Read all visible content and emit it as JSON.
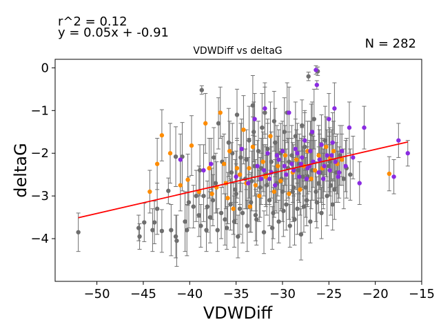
{
  "chart_data": {
    "type": "scatter",
    "title": "VDWDiff vs deltaG",
    "xlabel": "VDWDiff",
    "ylabel": "deltaG",
    "xlim": [
      -54.5,
      -15.0
    ],
    "ylim": [
      -5.0,
      0.2
    ],
    "xticks": [
      -50,
      -45,
      -40,
      -35,
      -30,
      -25,
      -20,
      -15
    ],
    "yticks": [
      0,
      -1,
      -2,
      -3,
      -4
    ],
    "xtick_labels": [
      "−50",
      "−45",
      "−40",
      "−35",
      "−30",
      "−25",
      "−20",
      "−15"
    ],
    "ytick_labels": [
      "0",
      "−1",
      "−2",
      "−3",
      "−4"
    ],
    "annotations": {
      "r2": "r^2 = 0.12",
      "equation": "y = 0.05x + -0.91",
      "n": "N = 282"
    },
    "fit": {
      "slope": 0.05,
      "intercept": -0.91,
      "x_range": [
        -52.0,
        -16.5
      ],
      "color": "#ff0000"
    },
    "error_bar_color": "#6e6e6e",
    "grid": false,
    "series": [
      {
        "color": "#6e6e6e",
        "points": [
          [
            -52.0,
            -3.85,
            0.45
          ],
          [
            -45.5,
            -3.75,
            0.3
          ],
          [
            -45.4,
            -3.95,
            0.3
          ],
          [
            -44.9,
            -3.62,
            0.45
          ],
          [
            -44.0,
            -3.8,
            0.5
          ],
          [
            -43.8,
            -3.62,
            0.5
          ],
          [
            -43.0,
            -3.82,
            0.5
          ],
          [
            -42.3,
            -2.88,
            0.3
          ],
          [
            -42.0,
            -3.8,
            0.6
          ],
          [
            -41.5,
            -3.95,
            0.5
          ],
          [
            -41.4,
            -4.05,
            0.6
          ],
          [
            -41.5,
            -2.08,
            0.7
          ],
          [
            -40.8,
            -2.08,
            0.8
          ],
          [
            -40.5,
            -3.6,
            0.7
          ],
          [
            -40.3,
            -3.8,
            0.6
          ],
          [
            -39.6,
            -3.25,
            0.5
          ],
          [
            -39.0,
            -3.45,
            0.5
          ],
          [
            -38.8,
            -3.7,
            0.5
          ],
          [
            -38.9,
            -2.4,
            0.6
          ],
          [
            -38.5,
            -3.0,
            0.6
          ],
          [
            -38.2,
            -3.8,
            0.5
          ],
          [
            -37.8,
            -3.5,
            0.6
          ],
          [
            -37.5,
            -3.1,
            0.6
          ],
          [
            -37.2,
            -2.7,
            0.7
          ],
          [
            -37.0,
            -3.8,
            0.5
          ],
          [
            -36.6,
            -3.4,
            0.6
          ],
          [
            -36.5,
            -2.2,
            0.6
          ],
          [
            -36.0,
            -3.75,
            0.5
          ],
          [
            -35.6,
            -3.2,
            0.6
          ],
          [
            -35.5,
            -2.45,
            0.7
          ],
          [
            -35.2,
            -3.6,
            0.6
          ],
          [
            -35.0,
            -2.95,
            0.7
          ],
          [
            -34.8,
            -3.95,
            0.5
          ],
          [
            -34.5,
            -2.1,
            0.8
          ],
          [
            -34.3,
            -3.4,
            0.7
          ],
          [
            -34.0,
            -2.6,
            0.7
          ],
          [
            -33.8,
            -3.7,
            0.6
          ],
          [
            -33.6,
            -1.7,
            0.8
          ],
          [
            -33.4,
            -3.15,
            0.7
          ],
          [
            -33.2,
            -0.88,
            0.7
          ],
          [
            -33.0,
            -2.3,
            0.7
          ],
          [
            -32.8,
            -3.55,
            0.6
          ],
          [
            -32.6,
            -1.95,
            0.7
          ],
          [
            -32.4,
            -2.8,
            0.7
          ],
          [
            -32.2,
            -1.4,
            0.8
          ],
          [
            -32.0,
            -3.85,
            0.5
          ],
          [
            -31.8,
            -2.5,
            0.7
          ],
          [
            -31.6,
            -1.9,
            0.7
          ],
          [
            -31.4,
            -3.1,
            0.6
          ],
          [
            -31.2,
            -2.2,
            0.7
          ],
          [
            -31.0,
            -3.4,
            0.6
          ],
          [
            -30.8,
            -1.75,
            0.8
          ],
          [
            -30.6,
            -2.7,
            0.7
          ],
          [
            -30.4,
            -3.6,
            0.5
          ],
          [
            -30.2,
            -2.0,
            0.7
          ],
          [
            -30.0,
            -2.9,
            0.7
          ],
          [
            -29.8,
            -1.5,
            0.8
          ],
          [
            -29.6,
            -3.2,
            0.6
          ],
          [
            -29.4,
            -2.35,
            0.7
          ],
          [
            -29.2,
            -3.7,
            0.5
          ],
          [
            -29.0,
            -2.05,
            0.7
          ],
          [
            -28.8,
            -2.8,
            0.7
          ],
          [
            -28.6,
            -1.6,
            0.8
          ],
          [
            -28.4,
            -3.3,
            0.6
          ],
          [
            -28.2,
            -2.25,
            0.7
          ],
          [
            -28.0,
            -3.9,
            0.6
          ],
          [
            -27.8,
            -2.55,
            0.7
          ],
          [
            -27.6,
            -1.85,
            0.8
          ],
          [
            -27.4,
            -3.1,
            0.6
          ],
          [
            -27.2,
            -0.2,
            0.1
          ],
          [
            -27.0,
            -3.6,
            0.5
          ],
          [
            -26.8,
            -2.4,
            0.7
          ],
          [
            -26.6,
            -1.2,
            0.7
          ],
          [
            -26.4,
            -2.9,
            0.7
          ],
          [
            -26.2,
            -0.08,
            0.1
          ],
          [
            -26.0,
            -2.15,
            0.7
          ],
          [
            -25.8,
            -3.4,
            0.6
          ],
          [
            -25.6,
            -2.6,
            0.7
          ],
          [
            -25.4,
            -1.7,
            0.8
          ],
          [
            -25.2,
            -3.0,
            0.7
          ],
          [
            -25.0,
            -2.3,
            0.7
          ],
          [
            -24.8,
            -2.75,
            0.7
          ],
          [
            -24.6,
            -3.2,
            0.6
          ],
          [
            -24.2,
            -2.45,
            0.7
          ],
          [
            -23.8,
            -2.05,
            0.7
          ],
          [
            -23.4,
            -2.6,
            0.7
          ],
          [
            -38.7,
            -0.52,
            0.1
          ],
          [
            -36.9,
            -1.3,
            0.6
          ],
          [
            -35.8,
            -1.75,
            0.8
          ],
          [
            -34.9,
            -1.1,
            0.6
          ],
          [
            -33.1,
            -1.5,
            0.7
          ],
          [
            -31.9,
            -1.05,
            0.6
          ],
          [
            -30.9,
            -1.25,
            0.7
          ],
          [
            -29.5,
            -1.05,
            0.7
          ],
          [
            -27.9,
            -1.35,
            0.6
          ],
          [
            -26.9,
            -1.55,
            0.7
          ],
          [
            -43.5,
            -3.3,
            0.6
          ],
          [
            -40.1,
            -3.15,
            0.6
          ],
          [
            -39.3,
            -3.0,
            0.6
          ],
          [
            -38.1,
            -3.25,
            0.6
          ],
          [
            -36.2,
            -3.55,
            0.6
          ],
          [
            -34.6,
            -3.3,
            0.6
          ],
          [
            -32.9,
            -3.45,
            0.6
          ],
          [
            -31.1,
            -3.75,
            0.5
          ],
          [
            -29.9,
            -3.35,
            0.6
          ],
          [
            -28.7,
            -3.55,
            0.6
          ],
          [
            -27.7,
            -3.25,
            0.6
          ],
          [
            -26.3,
            -3.15,
            0.6
          ],
          [
            -37.4,
            -2.1,
            0.7
          ],
          [
            -35.4,
            -2.0,
            0.7
          ],
          [
            -33.9,
            -2.15,
            0.7
          ],
          [
            -32.3,
            -2.35,
            0.7
          ],
          [
            -30.7,
            -2.45,
            0.7
          ],
          [
            -29.3,
            -2.2,
            0.7
          ],
          [
            -28.3,
            -2.4,
            0.7
          ],
          [
            -27.3,
            -2.55,
            0.7
          ],
          [
            -25.9,
            -2.45,
            0.7
          ],
          [
            -24.9,
            -2.2,
            0.7
          ],
          [
            -35.1,
            -2.85,
            0.7
          ],
          [
            -33.3,
            -2.65,
            0.7
          ],
          [
            -31.7,
            -2.75,
            0.7
          ],
          [
            -30.1,
            -2.6,
            0.7
          ],
          [
            -28.9,
            -2.9,
            0.7
          ],
          [
            -27.5,
            -2.8,
            0.7
          ],
          [
            -26.1,
            -2.7,
            0.7
          ],
          [
            -24.4,
            -2.85,
            0.7
          ],
          [
            -23.1,
            -2.35,
            0.7
          ],
          [
            -22.7,
            -2.5,
            0.6
          ]
        ]
      },
      {
        "color": "#ff8c00",
        "points": [
          [
            -44.3,
            -2.9,
            0.5
          ],
          [
            -43.5,
            -2.25,
            0.6
          ],
          [
            -43.0,
            -1.58,
            0.6
          ],
          [
            -42.1,
            -2.0,
            0.7
          ],
          [
            -41.0,
            -2.75,
            0.6
          ],
          [
            -40.2,
            -2.62,
            0.6
          ],
          [
            -39.8,
            -1.82,
            0.7
          ],
          [
            -39.0,
            -2.9,
            0.6
          ],
          [
            -38.3,
            -1.3,
            0.7
          ],
          [
            -37.9,
            -2.35,
            0.7
          ],
          [
            -37.6,
            -2.95,
            0.6
          ],
          [
            -37.1,
            -2.8,
            0.6
          ],
          [
            -36.7,
            -1.05,
            0.6
          ],
          [
            -36.3,
            -2.25,
            0.7
          ],
          [
            -36.1,
            -2.7,
            0.6
          ],
          [
            -35.9,
            -3.05,
            0.6
          ],
          [
            -35.3,
            -3.3,
            0.6
          ],
          [
            -34.6,
            -2.5,
            0.7
          ],
          [
            -34.2,
            -1.45,
            0.8
          ],
          [
            -33.9,
            -2.7,
            0.6
          ],
          [
            -33.6,
            -2.35,
            0.7
          ],
          [
            -33.2,
            -1.85,
            0.7
          ],
          [
            -32.9,
            -2.75,
            0.6
          ],
          [
            -32.5,
            -3.0,
            0.6
          ],
          [
            -32.1,
            -2.2,
            0.7
          ],
          [
            -31.8,
            -2.55,
            0.7
          ],
          [
            -31.3,
            -1.6,
            0.8
          ],
          [
            -30.9,
            -2.9,
            0.6
          ],
          [
            -30.5,
            -2.3,
            0.7
          ],
          [
            -30.2,
            -2.65,
            0.7
          ],
          [
            -29.7,
            -2.05,
            0.7
          ],
          [
            -29.3,
            -2.95,
            0.6
          ],
          [
            -28.9,
            -2.45,
            0.7
          ],
          [
            -28.5,
            -2.15,
            0.7
          ],
          [
            -28.1,
            -2.85,
            0.6
          ],
          [
            -27.7,
            -2.3,
            0.7
          ],
          [
            -27.3,
            -1.95,
            0.7
          ],
          [
            -26.9,
            -2.6,
            0.7
          ],
          [
            -26.5,
            -2.4,
            0.7
          ],
          [
            -26.1,
            -2.05,
            0.7
          ],
          [
            -25.7,
            -2.35,
            0.7
          ],
          [
            -25.3,
            -1.85,
            0.7
          ],
          [
            -24.9,
            -2.1,
            0.7
          ],
          [
            -24.5,
            -1.95,
            0.7
          ],
          [
            -24.1,
            -2.25,
            0.7
          ],
          [
            -23.6,
            -2.15,
            0.6
          ],
          [
            -18.5,
            -2.48,
            0.4
          ],
          [
            -33.5,
            -3.25,
            0.6
          ],
          [
            -34.9,
            -2.35,
            0.7
          ],
          [
            -35.7,
            -1.95,
            0.7
          ]
        ]
      },
      {
        "color": "#8a2be2",
        "points": [
          [
            -41.0,
            -2.15,
            0.6
          ],
          [
            -38.5,
            -2.4,
            0.6
          ],
          [
            -37.7,
            -2.25,
            0.6
          ],
          [
            -35.0,
            -2.55,
            0.6
          ],
          [
            -34.4,
            -1.9,
            0.7
          ],
          [
            -33.7,
            -2.7,
            0.6
          ],
          [
            -33.0,
            -1.2,
            0.6
          ],
          [
            -32.7,
            -2.3,
            0.6
          ],
          [
            -32.3,
            -2.6,
            0.6
          ],
          [
            -31.9,
            -0.95,
            0.6
          ],
          [
            -31.6,
            -2.0,
            0.7
          ],
          [
            -31.2,
            -2.45,
            0.6
          ],
          [
            -30.8,
            -2.75,
            0.6
          ],
          [
            -30.4,
            -2.15,
            0.7
          ],
          [
            -30.0,
            -1.95,
            0.7
          ],
          [
            -29.6,
            -2.5,
            0.6
          ],
          [
            -29.3,
            -1.05,
            0.6
          ],
          [
            -29.0,
            -2.25,
            0.6
          ],
          [
            -28.6,
            -1.9,
            0.7
          ],
          [
            -28.2,
            -2.55,
            0.6
          ],
          [
            -27.9,
            -2.1,
            0.7
          ],
          [
            -27.6,
            -1.7,
            0.7
          ],
          [
            -27.3,
            -2.35,
            0.6
          ],
          [
            -27.0,
            -1.95,
            0.7
          ],
          [
            -26.7,
            -2.2,
            0.6
          ],
          [
            -26.4,
            -0.05,
            0.1
          ],
          [
            -26.1,
            -2.45,
            0.6
          ],
          [
            -25.8,
            -1.8,
            0.7
          ],
          [
            -25.5,
            -2.3,
            0.6
          ],
          [
            -25.2,
            -2.05,
            0.6
          ],
          [
            -24.9,
            -2.4,
            0.6
          ],
          [
            -24.6,
            -1.75,
            0.7
          ],
          [
            -24.3,
            -2.2,
            0.6
          ],
          [
            -24.0,
            -2.55,
            0.6
          ],
          [
            -23.6,
            -1.95,
            0.6
          ],
          [
            -23.2,
            -2.3,
            0.6
          ],
          [
            -22.8,
            -1.4,
            0.6
          ],
          [
            -22.4,
            -2.1,
            0.5
          ],
          [
            -21.7,
            -2.7,
            0.5
          ],
          [
            -21.2,
            -1.4,
            0.5
          ],
          [
            -18.0,
            -2.55,
            0.4
          ],
          [
            -17.5,
            -1.7,
            0.4
          ],
          [
            -16.5,
            -2.0,
            0.3
          ],
          [
            -26.3,
            -0.4,
            0.1
          ],
          [
            -25.0,
            -1.2,
            0.6
          ],
          [
            -24.4,
            -0.95,
            0.6
          ],
          [
            -28.4,
            -2.0,
            0.7
          ],
          [
            -29.8,
            -2.3,
            0.6
          ],
          [
            -30.6,
            -2.05,
            0.7
          ],
          [
            -31.4,
            -2.6,
            0.6
          ],
          [
            -32.0,
            -2.4,
            0.6
          ],
          [
            -26.8,
            -1.5,
            0.7
          ],
          [
            -27.4,
            -2.6,
            0.6
          ],
          [
            -28.0,
            -2.25,
            0.6
          ],
          [
            -25.6,
            -2.6,
            0.6
          ],
          [
            -24.7,
            -2.05,
            0.6
          ],
          [
            -23.9,
            -2.45,
            0.6
          ],
          [
            -26.0,
            -2.15,
            0.6
          ],
          [
            -27.1,
            -2.3,
            0.6
          ],
          [
            -28.8,
            -2.4,
            0.6
          ]
        ]
      }
    ]
  }
}
